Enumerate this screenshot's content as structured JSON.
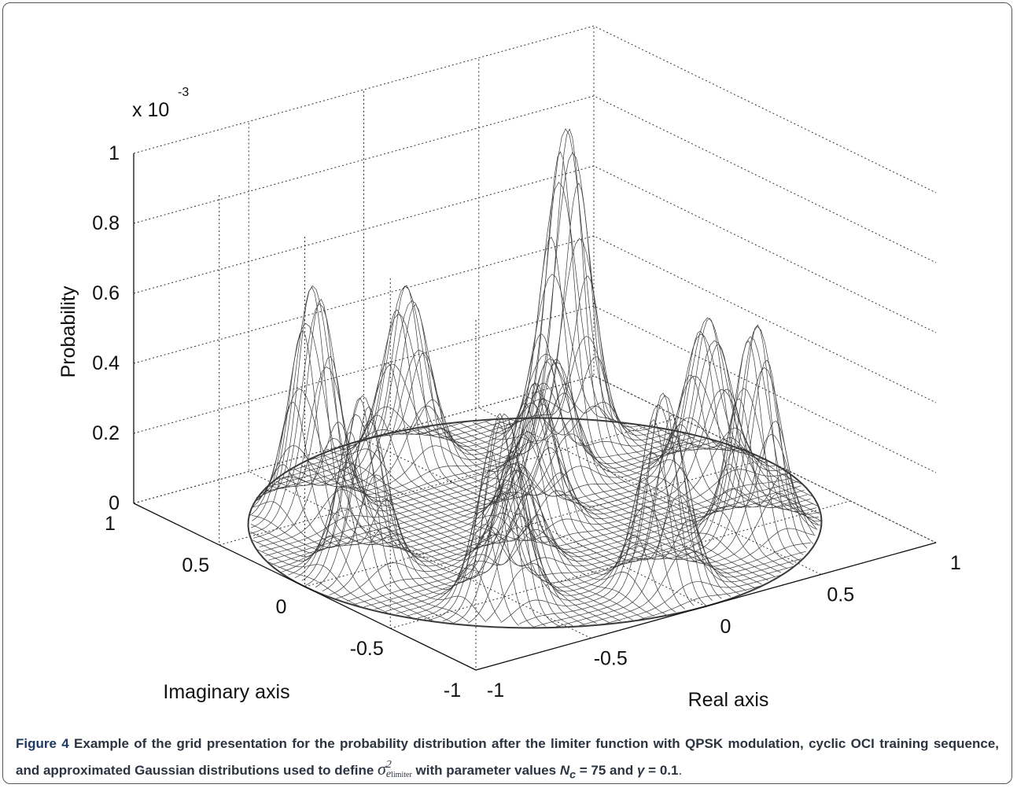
{
  "figure": {
    "z_exponent_base": "x 10",
    "z_exponent_power": "-3",
    "z_label": "Probability",
    "z_ticks": [
      "1",
      "0.8",
      "0.6",
      "0.4",
      "0.2",
      "0"
    ],
    "y_label": "Imaginary axis",
    "y_ticks": [
      "1",
      "0.5",
      "0",
      "-0.5",
      "-1"
    ],
    "x_label": "Real axis",
    "x_ticks": [
      "-1",
      "-0.5",
      "0",
      "0.5",
      "1"
    ]
  },
  "caption": {
    "label": "Figure 4",
    "text1": "Example of the grid presentation for the probability distribution after the limiter function with QPSK modulation, cyclic OCI training sequence, and approximated Gaussian distributions used to define",
    "sigma": "σ",
    "sigma_sup": "2",
    "sigma_sub": "e",
    "sigma_subsub": "limiter",
    "text2": "with parameter values",
    "n": "N",
    "n_sub": "c",
    "text3": "= 75 and",
    "gamma": "γ",
    "text4": "= 0.1",
    "end": "."
  }
}
